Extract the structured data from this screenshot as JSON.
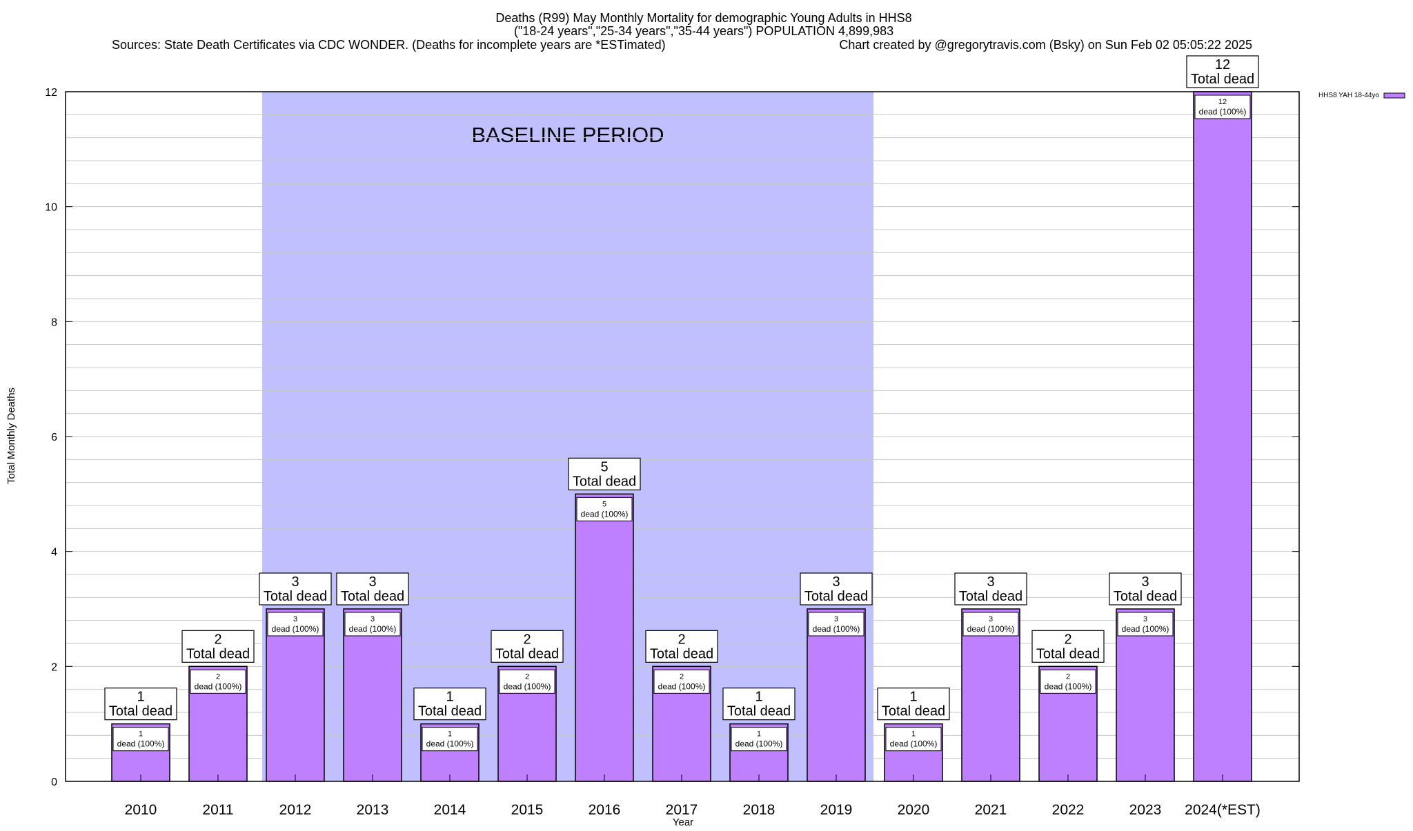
{
  "chart_data": {
    "type": "bar",
    "title_lines": [
      "Deaths (R99) May Monthly Mortality for demographic Young Adults in HHS8",
      "(\"18-24 years\",\"25-34 years\",\"35-44 years\") POPULATION 4,899,983"
    ],
    "sources_text": "Sources: State Death Certificates via CDC WONDER. (Deaths for incomplete years are *ESTimated)",
    "credit_text": "Chart created by @gregorytravis.com (Bsky) on Sun Feb 02 05:05:22 2025",
    "xlabel": "Year",
    "ylabel": "Total Monthly Deaths",
    "ylim": [
      0,
      12
    ],
    "y_ticks": [
      "0",
      "2",
      "4",
      "6",
      "8",
      "10",
      "12"
    ],
    "y_minor_step": 0.4,
    "categories": [
      "2010",
      "2011",
      "2012",
      "2013",
      "2014",
      "2015",
      "2016",
      "2017",
      "2018",
      "2019",
      "2020",
      "2021",
      "2022",
      "2023",
      "2024(*EST)"
    ],
    "series": [
      {
        "name": "HHS8 YAH 18-44yo",
        "color": "#bf80ff",
        "values": [
          1,
          2,
          3,
          3,
          1,
          2,
          5,
          2,
          1,
          3,
          1,
          3,
          2,
          3,
          12
        ]
      }
    ],
    "total_label_suffix": "Total dead",
    "inner_label_suffix": "dead (100%)",
    "baseline": {
      "label": "BASELINE PERIOD",
      "from_category": "2012",
      "to_category": "2019",
      "color": "#c0c0ff"
    },
    "grid": true,
    "legend_position": "top-right"
  }
}
